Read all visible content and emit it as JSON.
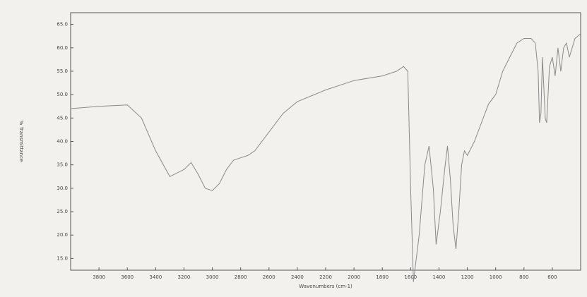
{
  "chart_data": {
    "type": "line",
    "y_label": "% Transmittance",
    "x_label": "Wavenumbers (cm-1)",
    "color": "#8a8a8a",
    "xlim": [
      4000,
      400
    ],
    "ylim": [
      12.5,
      67.5
    ],
    "xticks": [
      3800,
      3600,
      3400,
      3200,
      3000,
      2800,
      2600,
      2400,
      2200,
      2000,
      1800,
      1600,
      1400,
      1200,
      1000,
      800,
      600
    ],
    "yticks": [
      {
        "value": 15,
        "label": "15.0"
      },
      {
        "value": 20,
        "label": "20.0"
      },
      {
        "value": 25,
        "label": "25.0"
      },
      {
        "value": 30,
        "label": "30.0"
      },
      {
        "value": 35,
        "label": "35.0"
      },
      {
        "value": 40,
        "label": "40.0"
      },
      {
        "value": 45,
        "label": "45.0"
      },
      {
        "value": 50,
        "label": "50.0"
      },
      {
        "value": 55,
        "label": "55.0"
      },
      {
        "value": 60,
        "label": "60.0"
      },
      {
        "value": 65,
        "label": "65.0"
      }
    ],
    "x": [
      4000,
      3800,
      3600,
      3500,
      3400,
      3300,
      3200,
      3150,
      3100,
      3050,
      3000,
      2950,
      2900,
      2850,
      2800,
      2750,
      2700,
      2600,
      2500,
      2400,
      2200,
      2000,
      1800,
      1700,
      1650,
      1620,
      1600,
      1580,
      1540,
      1500,
      1470,
      1440,
      1420,
      1390,
      1360,
      1340,
      1320,
      1300,
      1280,
      1260,
      1240,
      1220,
      1200,
      1150,
      1100,
      1050,
      1000,
      950,
      900,
      850,
      800,
      750,
      720,
      700,
      690,
      680,
      670,
      650,
      640,
      620,
      600,
      580,
      560,
      540,
      520,
      500,
      480,
      460,
      440,
      400
    ],
    "values": [
      47,
      47.5,
      47.8,
      45,
      38,
      32.5,
      34,
      35.5,
      33,
      30,
      29.5,
      31,
      34,
      36,
      36.5,
      37,
      38,
      42,
      46,
      48.5,
      51,
      53,
      54,
      55,
      56,
      55,
      30,
      10,
      20,
      35,
      39,
      30,
      18,
      25,
      34,
      39,
      32,
      22,
      17,
      25,
      35,
      38,
      37,
      40,
      44,
      48,
      50,
      55,
      58,
      61,
      62,
      62,
      61,
      55,
      44,
      46,
      58,
      45,
      44,
      56,
      58,
      54,
      60,
      55,
      60,
      61,
      58,
      60,
      62,
      63
    ]
  }
}
